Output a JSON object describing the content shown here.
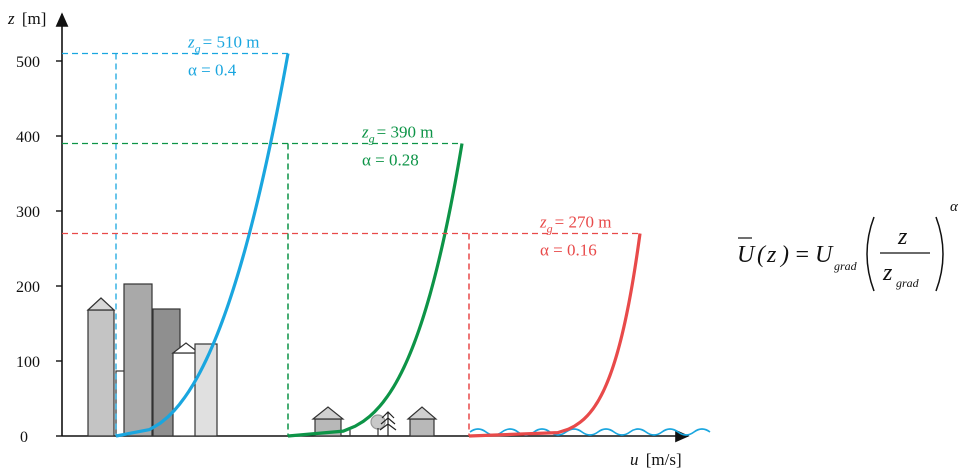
{
  "axes": {
    "y_label_var": "z",
    "y_label_unit": "[m]",
    "x_label_var": "u",
    "x_label_unit": "[m/s]",
    "y_ticks": [
      "0",
      "100",
      "200",
      "300",
      "400",
      "500"
    ]
  },
  "profiles": [
    {
      "zg_label": "= 510 m",
      "alpha_label": "α = 0.4",
      "zg_value": 510,
      "alpha": 0.4,
      "color": "#1aa6df",
      "terrain": "city"
    },
    {
      "zg_label": "= 390 m",
      "alpha_label": "α = 0.28",
      "zg_value": 390,
      "alpha": 0.28,
      "color": "#0d9447",
      "terrain": "suburban"
    },
    {
      "zg_label": "= 270 m",
      "alpha_label": "α = 0.16",
      "zg_value": 270,
      "alpha": 0.16,
      "color": "#e84a4a",
      "terrain": "sea"
    }
  ],
  "equation": {
    "lhs": "U",
    "lhs_arg": "z",
    "equals": "=",
    "coef": "U",
    "coef_sub": "grad",
    "num": "z",
    "den": "z",
    "den_sub": "grad",
    "exponent": "α"
  }
}
